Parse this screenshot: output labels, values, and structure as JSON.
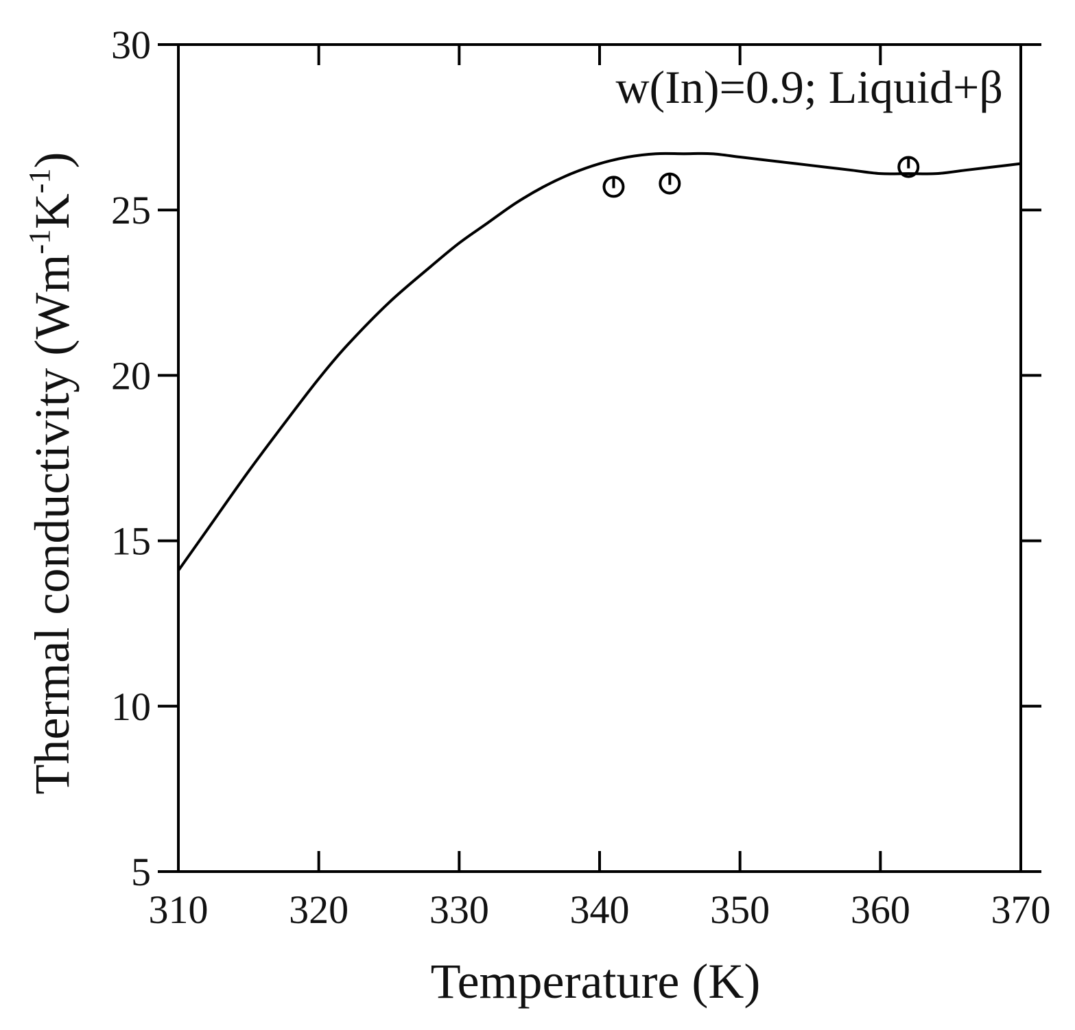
{
  "chart_data": {
    "type": "line",
    "annotation": "w(In)=0.9; Liquid+β",
    "xlabel": "Temperature (K)",
    "ylabel": {
      "prefix": "Thermal conductivity (Wm",
      "sup1": "-1",
      "middle": "K",
      "sup2": "-1",
      "suffix": ")"
    },
    "xlim": [
      310,
      370
    ],
    "ylim": [
      5,
      30
    ],
    "xticks": [
      310,
      320,
      330,
      340,
      350,
      360,
      370
    ],
    "yticks": [
      5,
      10,
      15,
      20,
      25,
      30
    ],
    "grid": false,
    "series": [
      {
        "kind": "line",
        "color": "#000000",
        "x": [
          310,
          312,
          315,
          318,
          320,
          322,
          325,
          328,
          330,
          332,
          334,
          336,
          338,
          340,
          342,
          344,
          346,
          348,
          350,
          352,
          354,
          356,
          358,
          360,
          362,
          364,
          366,
          368,
          370
        ],
        "y": [
          14.1,
          15.3,
          17.1,
          18.8,
          19.9,
          20.9,
          22.2,
          23.3,
          24.0,
          24.6,
          25.2,
          25.7,
          26.1,
          26.4,
          26.6,
          26.7,
          26.7,
          26.7,
          26.6,
          26.5,
          26.4,
          26.3,
          26.2,
          26.1,
          26.1,
          26.1,
          26.2,
          26.3,
          26.4
        ]
      },
      {
        "kind": "scatter",
        "marker": "open-circle",
        "color": "#000000",
        "x": [
          341,
          345,
          362
        ],
        "y": [
          25.7,
          25.8,
          26.3
        ]
      }
    ]
  }
}
